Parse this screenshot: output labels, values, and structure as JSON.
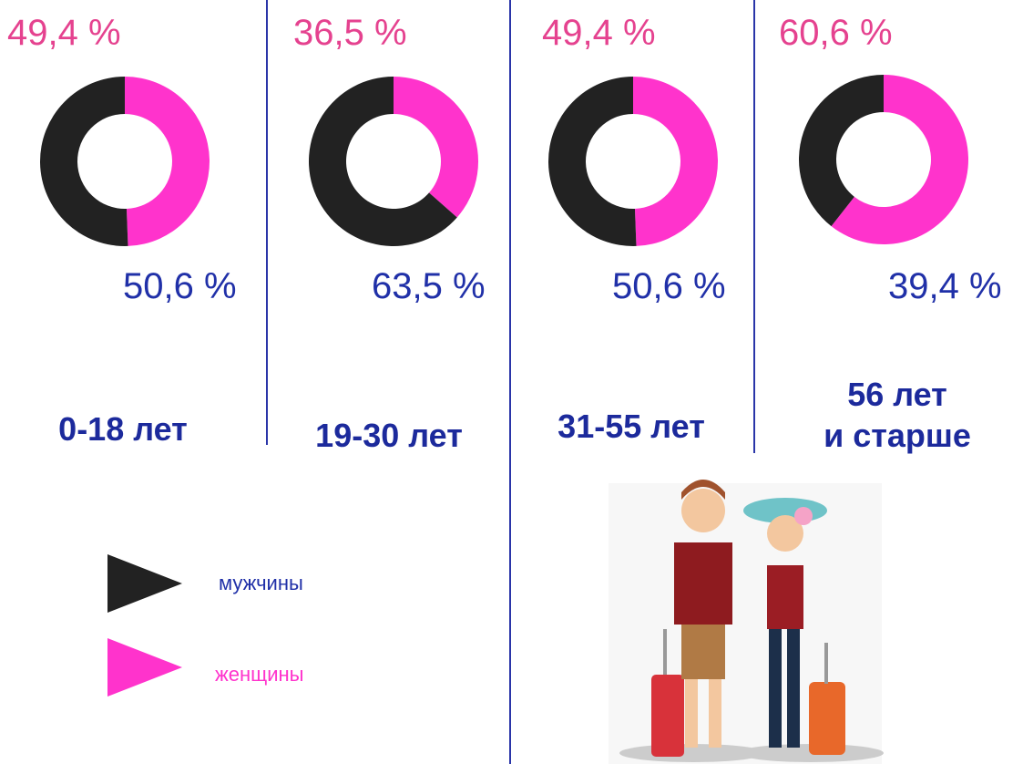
{
  "legend": {
    "items": [
      {
        "name": "мужчины",
        "color": "#222222"
      },
      {
        "name": "женщины",
        "color": "#ff33cc"
      }
    ]
  },
  "chart_data": [
    {
      "type": "donut",
      "title": "0-18 лет",
      "values": [
        50.6,
        49.4
      ],
      "value_labels": [
        "50,6 %",
        "49,4 %"
      ]
    },
    {
      "type": "donut",
      "title": "19-30 лет",
      "values": [
        63.5,
        36.5
      ],
      "value_labels": [
        "63,5 %",
        "36,5 %"
      ]
    },
    {
      "type": "donut",
      "title": "31-55 лет",
      "values": [
        50.6,
        49.4
      ],
      "value_labels": [
        "50,6 %",
        "49,4 %"
      ]
    },
    {
      "type": "donut",
      "title": "56 лет\nи старше",
      "values": [
        39.4,
        60.6
      ],
      "value_labels": [
        "39,4 %",
        "60,6 %"
      ]
    }
  ]
}
